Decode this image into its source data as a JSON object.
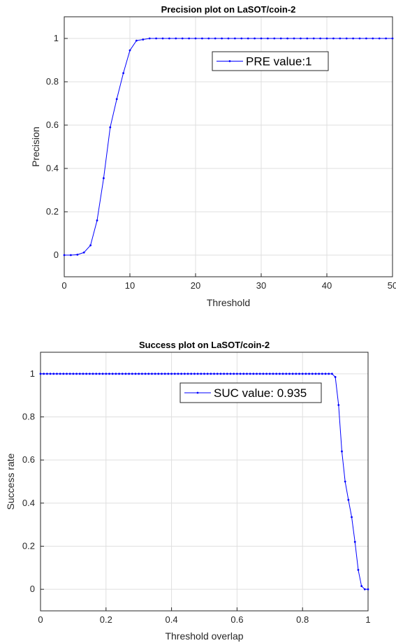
{
  "chart_data": [
    {
      "type": "line",
      "title": "Precision plot on LaSOT/coin-2",
      "xlabel": "Threshold",
      "ylabel": "Precision",
      "xlim": [
        0,
        50
      ],
      "ylim": [
        -0.1,
        1.1
      ],
      "grid": true,
      "legend_position": "top-right",
      "xticks": [
        "0",
        "10",
        "20",
        "30",
        "40",
        "50"
      ],
      "yticks": [
        "0",
        "0.2",
        "0.4",
        "0.6",
        "0.8",
        "1"
      ],
      "series": [
        {
          "name": "PRE value:1",
          "color": "#0000ff",
          "x": [
            0,
            1,
            2,
            3,
            4,
            5,
            6,
            7,
            8,
            9,
            10,
            11,
            12,
            13,
            14,
            15,
            16,
            17,
            18,
            19,
            20,
            21,
            22,
            23,
            24,
            25,
            26,
            27,
            28,
            29,
            30,
            31,
            32,
            33,
            34,
            35,
            36,
            37,
            38,
            39,
            40,
            41,
            42,
            43,
            44,
            45,
            46,
            47,
            48,
            49,
            50
          ],
          "y": [
            0,
            0,
            0.002,
            0.012,
            0.045,
            0.16,
            0.355,
            0.59,
            0.72,
            0.84,
            0.945,
            0.99,
            0.995,
            1,
            1,
            1,
            1,
            1,
            1,
            1,
            1,
            1,
            1,
            1,
            1,
            1,
            1,
            1,
            1,
            1,
            1,
            1,
            1,
            1,
            1,
            1,
            1,
            1,
            1,
            1,
            1,
            1,
            1,
            1,
            1,
            1,
            1,
            1,
            1,
            1,
            1
          ]
        }
      ]
    },
    {
      "type": "line",
      "title": "Success plot on LaSOT/coin-2",
      "xlabel": "Threshold overlap",
      "ylabel": "Success rate",
      "xlim": [
        0,
        1
      ],
      "ylim": [
        -0.1,
        1.1
      ],
      "grid": true,
      "legend_position": "top-right",
      "xticks": [
        "0",
        "0.2",
        "0.4",
        "0.6",
        "0.8",
        "1"
      ],
      "yticks": [
        "0",
        "0.2",
        "0.4",
        "0.6",
        "0.8",
        "1"
      ],
      "series": [
        {
          "name": "SUC value: 0.935",
          "color": "#0000ff",
          "x": [
            0,
            0.01,
            0.02,
            0.03,
            0.04,
            0.05,
            0.06,
            0.07,
            0.08,
            0.09,
            0.1,
            0.11,
            0.12,
            0.13,
            0.14,
            0.15,
            0.16,
            0.17,
            0.18,
            0.19,
            0.2,
            0.21,
            0.22,
            0.23,
            0.24,
            0.25,
            0.26,
            0.27,
            0.28,
            0.29,
            0.3,
            0.31,
            0.32,
            0.33,
            0.34,
            0.35,
            0.36,
            0.37,
            0.38,
            0.39,
            0.4,
            0.41,
            0.42,
            0.43,
            0.44,
            0.45,
            0.46,
            0.47,
            0.48,
            0.49,
            0.5,
            0.51,
            0.52,
            0.53,
            0.54,
            0.55,
            0.56,
            0.57,
            0.58,
            0.59,
            0.6,
            0.61,
            0.62,
            0.63,
            0.64,
            0.65,
            0.66,
            0.67,
            0.68,
            0.69,
            0.7,
            0.71,
            0.72,
            0.73,
            0.74,
            0.75,
            0.76,
            0.77,
            0.78,
            0.79,
            0.8,
            0.81,
            0.82,
            0.83,
            0.84,
            0.85,
            0.86,
            0.87,
            0.88,
            0.89,
            0.9,
            0.91,
            0.92,
            0.93,
            0.94,
            0.95,
            0.96,
            0.97,
            0.98,
            0.99,
            1
          ],
          "y": [
            1,
            1,
            1,
            1,
            1,
            1,
            1,
            1,
            1,
            1,
            1,
            1,
            1,
            1,
            1,
            1,
            1,
            1,
            1,
            1,
            1,
            1,
            1,
            1,
            1,
            1,
            1,
            1,
            1,
            1,
            1,
            1,
            1,
            1,
            1,
            1,
            1,
            1,
            1,
            1,
            1,
            1,
            1,
            1,
            1,
            1,
            1,
            1,
            1,
            1,
            1,
            1,
            1,
            1,
            1,
            1,
            1,
            1,
            1,
            1,
            1,
            1,
            1,
            1,
            1,
            1,
            1,
            1,
            1,
            1,
            1,
            1,
            1,
            1,
            1,
            1,
            1,
            1,
            1,
            1,
            1,
            1,
            1,
            1,
            1,
            1,
            1,
            1,
            1,
            1,
            0.985,
            0.855,
            0.64,
            0.5,
            0.415,
            0.335,
            0.22,
            0.09,
            0.015,
            0,
            0
          ]
        }
      ]
    }
  ]
}
